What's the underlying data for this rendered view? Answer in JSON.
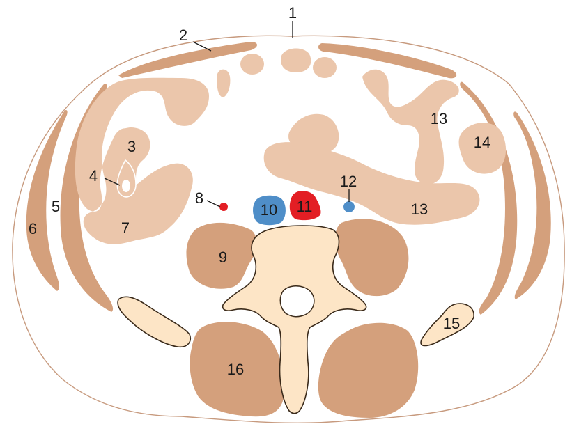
{
  "labels": {
    "l1": "1",
    "l2": "2",
    "l3": "3",
    "l4": "4",
    "l5": "5",
    "l6": "6",
    "l7": "7",
    "l8": "8",
    "l9": "9",
    "l10": "10",
    "l11": "11",
    "l12": "12",
    "l13a": "13",
    "l13b": "13",
    "l14": "14",
    "l15": "15",
    "l16": "16"
  },
  "colors": {
    "skin_outline": "#c79a7e",
    "muscle": "#d4a07c",
    "bowel": "#ebc6ab",
    "bone": "#fde5c6",
    "vein": "#4f8ec8",
    "artery": "#e31e24"
  }
}
